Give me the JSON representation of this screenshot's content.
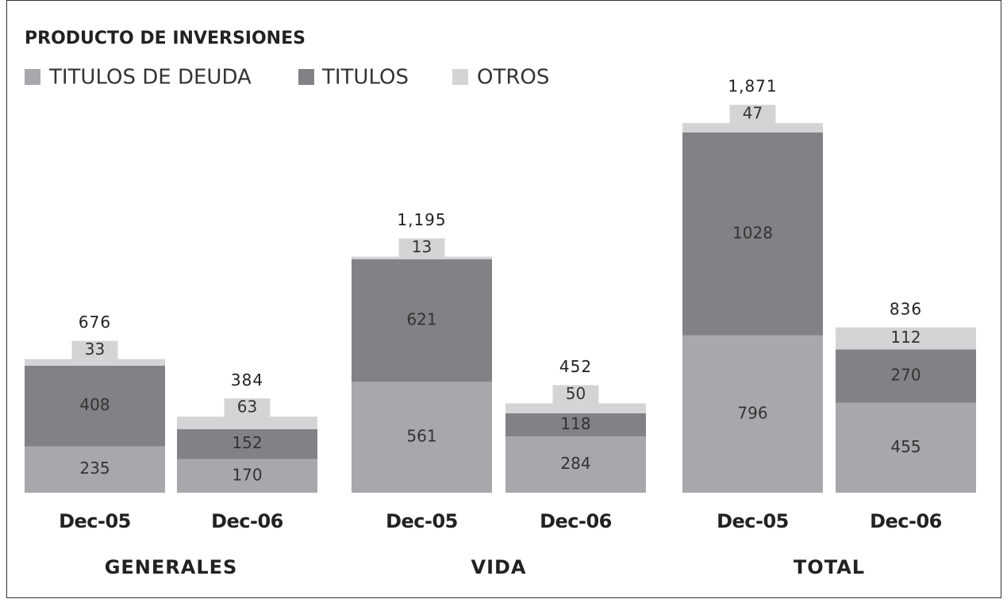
{
  "chart_data": {
    "type": "stacked_bar",
    "title": "PRODUCTO DE INVERSIONES",
    "categories": [
      "Dec-05",
      "Dec-06",
      "Dec-05",
      "Dec-06",
      "Dec-05",
      "Dec-06"
    ],
    "groups": [
      "GENERALES",
      "VIDA",
      "TOTAL"
    ],
    "series": [
      {
        "name": "TITULOS DE DEUDA",
        "color": "#a7a8ab",
        "values": [
          235,
          170,
          561,
          284,
          796,
          455
        ]
      },
      {
        "name": "TITULOS",
        "color": "#818285",
        "values": [
          408,
          152,
          621,
          118,
          1028,
          270
        ]
      },
      {
        "name": "OTROS",
        "color": "#d3d4d5",
        "values": [
          33,
          63,
          13,
          50,
          47,
          112
        ]
      }
    ],
    "totals": {
      "values": [
        676,
        384,
        1195,
        452,
        1871,
        836
      ],
      "value_labels": [
        "676",
        "384",
        "1,195",
        "452",
        "1,871",
        "836"
      ]
    }
  }
}
